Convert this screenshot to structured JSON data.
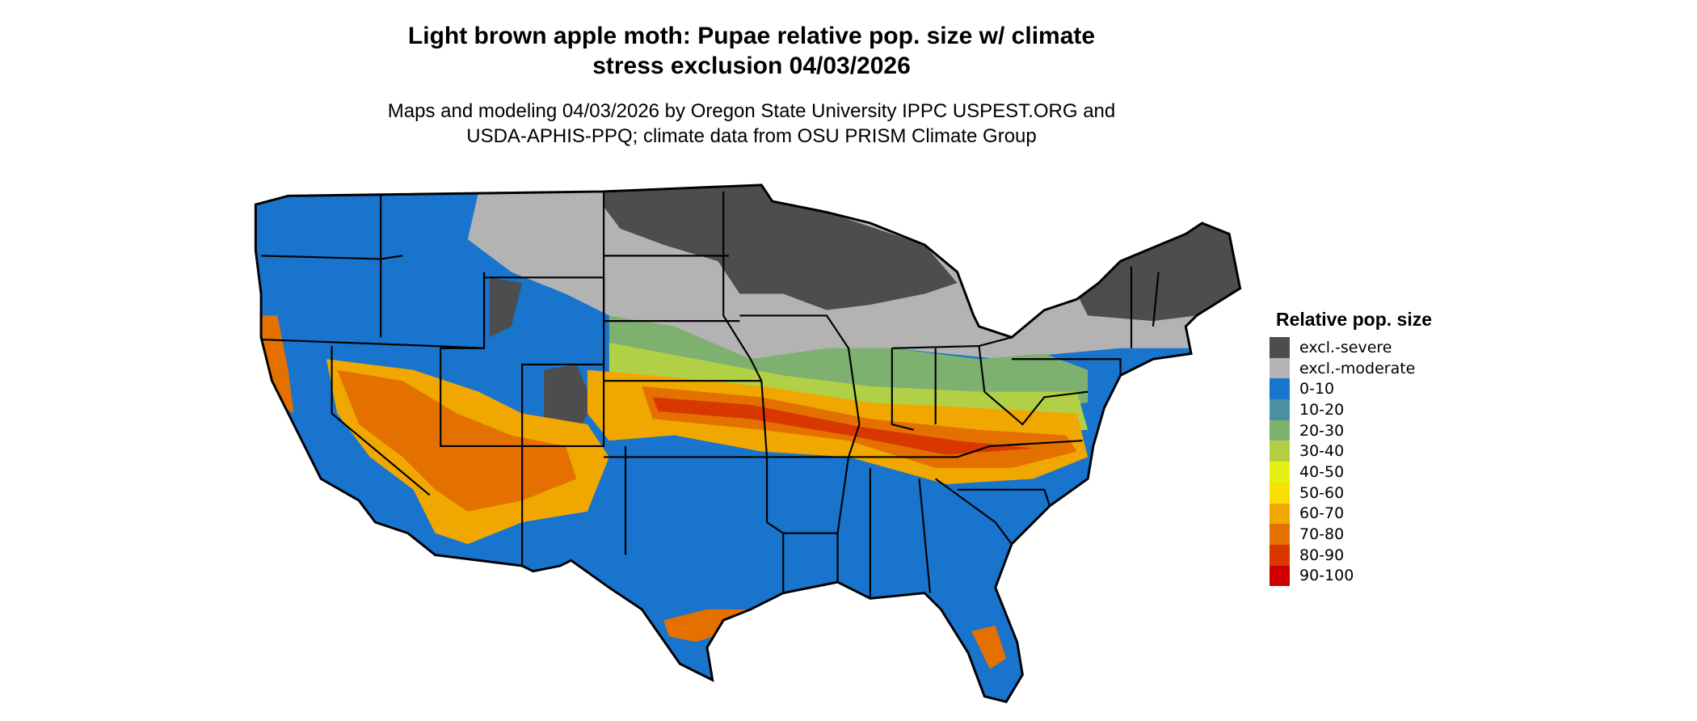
{
  "title": {
    "line1": "Light brown apple moth: Pupae relative pop. size w/ climate",
    "line2": "stress exclusion 04/03/2026"
  },
  "subtitle": {
    "line1": "Maps and modeling 04/03/2026 by Oregon State University IPPC USPEST.ORG and",
    "line2": "USDA-APHIS-PPQ; climate data from OSU PRISM Climate Group"
  },
  "map": {
    "region": "Contiguous United States",
    "state_borders": true
  },
  "legend": {
    "title": "Relative pop. size",
    "placement": "right",
    "items": [
      {
        "label": "excl.-severe",
        "color": "#4d4d4d"
      },
      {
        "label": "excl.-moderate",
        "color": "#b3b3b3"
      },
      {
        "label": "0-10",
        "color": "#1874cd"
      },
      {
        "label": "10-20",
        "color": "#4a90a0"
      },
      {
        "label": "20-30",
        "color": "#7eb070"
      },
      {
        "label": "30-40",
        "color": "#b2d045"
      },
      {
        "label": "40-50",
        "color": "#e5f015"
      },
      {
        "label": "50-60",
        "color": "#f8e000"
      },
      {
        "label": "60-70",
        "color": "#f0a800"
      },
      {
        "label": "70-80",
        "color": "#e47000"
      },
      {
        "label": "80-90",
        "color": "#d83800"
      },
      {
        "label": "90-100",
        "color": "#cc0000"
      }
    ]
  }
}
